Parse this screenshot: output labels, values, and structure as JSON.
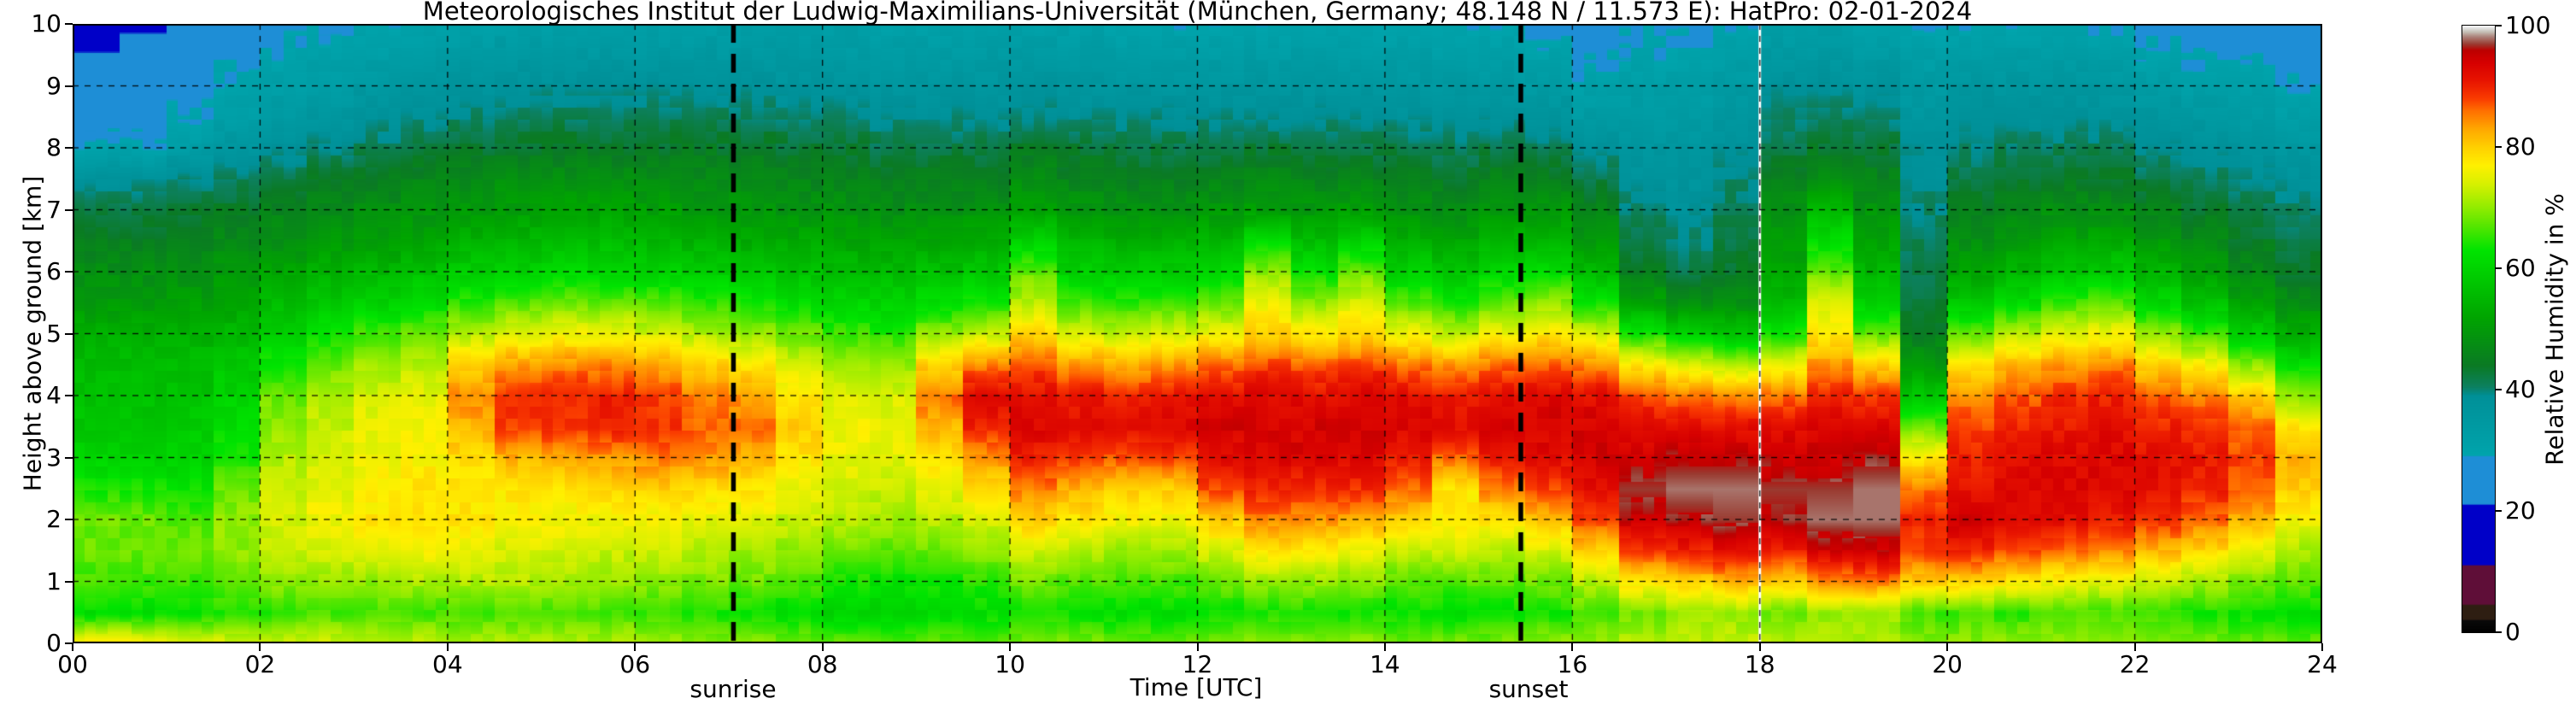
{
  "title": "Meteorologisches Institut der Ludwig-Maximilians-Universität (München, Germany; 48.148 N / 11.573 E):    HatPro: 02-01-2024",
  "axes": {
    "x": {
      "label": "Time [UTC]",
      "range_hours": [
        0,
        24
      ],
      "tick_hours": [
        0,
        2,
        4,
        6,
        8,
        10,
        12,
        14,
        16,
        18,
        20,
        22,
        24
      ],
      "tick_labels": [
        "00",
        "02",
        "04",
        "06",
        "08",
        "10",
        "12",
        "14",
        "16",
        "18",
        "20",
        "22",
        "24"
      ]
    },
    "y": {
      "label": "Height above ground [km]",
      "range_km": [
        0,
        10
      ],
      "tick_km": [
        0,
        1,
        2,
        3,
        4,
        5,
        6,
        7,
        8,
        9,
        10
      ],
      "tick_labels": [
        "0",
        "1",
        "2",
        "3",
        "4",
        "5",
        "6",
        "7",
        "8",
        "9",
        "10"
      ]
    }
  },
  "colorbar": {
    "label": "Relative Humidity in %",
    "range_percent": [
      0,
      100
    ],
    "tick_values": [
      0,
      20,
      40,
      60,
      80,
      100
    ],
    "tick_labels": [
      "0",
      "20",
      "40",
      "60",
      "80",
      "100"
    ]
  },
  "annotations": {
    "sunrise": {
      "label": "sunrise",
      "hour": 7.05,
      "line_style": "thick-black-dashed"
    },
    "sunset": {
      "label": "sunset",
      "hour": 15.45,
      "line_style": "thick-black-dashed"
    },
    "data_gap": {
      "hour": 18.0,
      "color": "#ffffff"
    }
  },
  "chart_data": {
    "type": "heatmap",
    "title": "Relative humidity time-height cross-section from HatPro microwave radiometer",
    "xlabel": "Time [UTC]",
    "ylabel": "Height above ground [km]",
    "x_range": [
      0,
      24
    ],
    "y_range": [
      0,
      10
    ],
    "value_units": "percent relative humidity",
    "grid": {
      "h_lines_km": [
        1,
        2,
        3,
        4,
        5,
        6,
        7,
        8,
        9
      ],
      "v_lines_hours": [
        2,
        4,
        6,
        8,
        10,
        12,
        14,
        16,
        18,
        20,
        22
      ],
      "style": "black-dashed"
    },
    "x_hours": [
      0,
      0.5,
      1,
      1.5,
      2,
      2.5,
      3,
      3.5,
      4,
      4.5,
      5,
      5.5,
      6,
      6.5,
      7,
      7.5,
      8,
      8.5,
      9,
      9.5,
      10,
      10.5,
      11,
      11.5,
      12,
      12.5,
      13,
      13.5,
      14,
      14.5,
      15,
      15.5,
      16,
      16.5,
      17,
      17.5,
      18,
      18.5,
      19,
      19.5,
      20,
      20.5,
      21,
      21.5,
      22,
      22.5,
      23,
      23.5
    ],
    "y_km": [
      0,
      0.5,
      1,
      1.5,
      2,
      2.5,
      3,
      3.5,
      4,
      4.5,
      5,
      5.5,
      6,
      6.5,
      7,
      7.5,
      8,
      8.5,
      9,
      9.5,
      10
    ],
    "values_percent": [
      [
        78,
        62,
        66,
        68,
        68,
        64,
        60,
        58,
        57,
        56,
        54,
        50,
        48,
        45,
        42,
        38,
        30,
        27,
        26,
        22,
        14
      ],
      [
        78,
        62,
        66,
        68,
        68,
        64,
        60,
        58,
        57,
        56,
        54,
        50,
        48,
        45,
        42,
        38,
        30,
        27,
        26,
        24,
        20
      ],
      [
        76,
        63,
        66,
        68,
        67,
        63,
        60,
        59,
        57,
        56,
        54,
        51,
        48,
        46,
        43,
        40,
        33,
        29,
        27,
        25,
        23
      ],
      [
        75,
        64,
        68,
        70,
        70,
        68,
        64,
        62,
        60,
        58,
        55,
        52,
        50,
        47,
        44,
        41,
        36,
        32,
        30,
        28,
        26
      ],
      [
        74,
        65,
        70,
        73,
        74,
        73,
        72,
        70,
        68,
        64,
        60,
        56,
        52,
        48,
        46,
        42,
        38,
        34,
        32,
        30,
        28
      ],
      [
        74,
        66,
        70,
        74,
        76,
        75,
        74,
        73,
        72,
        68,
        63,
        58,
        54,
        50,
        47,
        44,
        40,
        36,
        33,
        31,
        29
      ],
      [
        73,
        66,
        70,
        75,
        78,
        77,
        76,
        75,
        74,
        71,
        66,
        60,
        55,
        51,
        48,
        45,
        41,
        38,
        35,
        32,
        30
      ],
      [
        73,
        66,
        71,
        76,
        79,
        78,
        77,
        76,
        75,
        72,
        68,
        62,
        57,
        52,
        49,
        46,
        42,
        39,
        36,
        33,
        31
      ],
      [
        72,
        66,
        72,
        75,
        78,
        78,
        79,
        82,
        85,
        80,
        72,
        65,
        59,
        54,
        50,
        47,
        43,
        40,
        37,
        34,
        31
      ],
      [
        72,
        66,
        72,
        74,
        77,
        78,
        82,
        88,
        89,
        84,
        75,
        67,
        60,
        55,
        51,
        48,
        44,
        41,
        38,
        35,
        32
      ],
      [
        72,
        66,
        71,
        74,
        76,
        78,
        83,
        89,
        90,
        85,
        76,
        68,
        61,
        56,
        52,
        48,
        44,
        41,
        38,
        35,
        32
      ],
      [
        72,
        66,
        71,
        73,
        76,
        79,
        84,
        90,
        90,
        85,
        76,
        68,
        61,
        56,
        52,
        48,
        44,
        41,
        38,
        35,
        32
      ],
      [
        71,
        65,
        70,
        73,
        76,
        80,
        85,
        89,
        88,
        83,
        74,
        67,
        60,
        55,
        51,
        48,
        44,
        41,
        38,
        35,
        32
      ],
      [
        70,
        64,
        69,
        72,
        75,
        79,
        84,
        87,
        85,
        80,
        72,
        65,
        59,
        54,
        50,
        47,
        44,
        41,
        38,
        35,
        32
      ],
      [
        70,
        63,
        68,
        71,
        74,
        78,
        82,
        86,
        84,
        78,
        70,
        64,
        58,
        53,
        50,
        47,
        44,
        41,
        38,
        35,
        32
      ],
      [
        69,
        62,
        66,
        70,
        73,
        75,
        78,
        80,
        78,
        74,
        68,
        62,
        57,
        53,
        49,
        46,
        43,
        40,
        37,
        35,
        32
      ],
      [
        68,
        60,
        64,
        68,
        72,
        74,
        75,
        76,
        74,
        71,
        66,
        61,
        56,
        52,
        49,
        46,
        43,
        40,
        37,
        34,
        32
      ],
      [
        68,
        60,
        63,
        67,
        71,
        73,
        75,
        75,
        74,
        70,
        65,
        60,
        56,
        52,
        48,
        45,
        42,
        39,
        36,
        34,
        31
      ],
      [
        68,
        61,
        64,
        68,
        72,
        75,
        78,
        82,
        86,
        80,
        70,
        62,
        57,
        52,
        48,
        45,
        42,
        39,
        36,
        34,
        31
      ],
      [
        68,
        62,
        65,
        70,
        74,
        78,
        84,
        90,
        93,
        85,
        73,
        64,
        58,
        53,
        49,
        45,
        42,
        39,
        36,
        34,
        31
      ],
      [
        69,
        64,
        68,
        74,
        80,
        85,
        90,
        93,
        92,
        88,
        80,
        72,
        68,
        60,
        52,
        48,
        44,
        40,
        37,
        34,
        31
      ],
      [
        69,
        63,
        67,
        72,
        78,
        82,
        88,
        92,
        91,
        84,
        74,
        66,
        60,
        55,
        50,
        46,
        43,
        39,
        36,
        34,
        31
      ],
      [
        68,
        62,
        66,
        70,
        76,
        80,
        87,
        92,
        90,
        83,
        73,
        65,
        59,
        54,
        49,
        45,
        42,
        39,
        36,
        33,
        30
      ],
      [
        68,
        62,
        66,
        71,
        76,
        80,
        88,
        93,
        91,
        84,
        74,
        66,
        59,
        54,
        49,
        45,
        42,
        39,
        36,
        33,
        30
      ],
      [
        69,
        63,
        68,
        74,
        80,
        88,
        92,
        94,
        92,
        86,
        76,
        68,
        61,
        55,
        50,
        46,
        42,
        39,
        36,
        33,
        30
      ],
      [
        70,
        64,
        70,
        78,
        85,
        90,
        93,
        94,
        93,
        88,
        80,
        76,
        70,
        62,
        51,
        47,
        43,
        39,
        36,
        33,
        30
      ],
      [
        70,
        64,
        70,
        77,
        84,
        89,
        93,
        94,
        92,
        87,
        78,
        70,
        63,
        56,
        50,
        46,
        42,
        39,
        36,
        33,
        30
      ],
      [
        70,
        64,
        69,
        76,
        83,
        89,
        93,
        94,
        93,
        88,
        79,
        74,
        68,
        60,
        51,
        46,
        42,
        39,
        36,
        33,
        30
      ],
      [
        69,
        63,
        67,
        73,
        80,
        86,
        91,
        93,
        92,
        86,
        76,
        67,
        60,
        54,
        49,
        45,
        42,
        38,
        35,
        33,
        30
      ],
      [
        69,
        62,
        67,
        74,
        77,
        78,
        86,
        92,
        91,
        84,
        73,
        64,
        58,
        52,
        48,
        44,
        41,
        38,
        35,
        32,
        30
      ],
      [
        69,
        63,
        67,
        72,
        78,
        85,
        91,
        94,
        92,
        86,
        76,
        68,
        61,
        55,
        50,
        46,
        42,
        38,
        35,
        32,
        30
      ],
      [
        70,
        64,
        68,
        74,
        81,
        88,
        92,
        94,
        93,
        87,
        78,
        70,
        62,
        55,
        50,
        45,
        41,
        37,
        34,
        31,
        28
      ],
      [
        71,
        66,
        72,
        80,
        88,
        92,
        94,
        94,
        92,
        85,
        74,
        64,
        56,
        50,
        46,
        42,
        38,
        34,
        31,
        28,
        26
      ],
      [
        72,
        68,
        78,
        88,
        95,
        97,
        95,
        92,
        88,
        78,
        64,
        52,
        45,
        42,
        40,
        38,
        36,
        34,
        32,
        30,
        28
      ],
      [
        73,
        70,
        80,
        90,
        96,
        98,
        96,
        92,
        86,
        74,
        60,
        48,
        42,
        40,
        38,
        37,
        36,
        34,
        32,
        30,
        28
      ],
      [
        73,
        70,
        82,
        92,
        97,
        98,
        96,
        92,
        85,
        72,
        58,
        48,
        44,
        42,
        41,
        40,
        38,
        36,
        34,
        32,
        30
      ],
      [
        72,
        68,
        80,
        90,
        96,
        97,
        95,
        92,
        86,
        76,
        64,
        56,
        52,
        50,
        48,
        46,
        42,
        40,
        38,
        35,
        32
      ],
      [
        72,
        70,
        84,
        94,
        98,
        97,
        95,
        93,
        90,
        84,
        78,
        74,
        68,
        62,
        55,
        48,
        44,
        41,
        38,
        35,
        32
      ],
      [
        72,
        70,
        85,
        95,
        98,
        98,
        96,
        93,
        89,
        80,
        68,
        60,
        55,
        52,
        49,
        46,
        43,
        40,
        37,
        34,
        31
      ],
      [
        70,
        66,
        80,
        88,
        90,
        86,
        78,
        68,
        58,
        50,
        45,
        43,
        42,
        41,
        40,
        39,
        38,
        36,
        34,
        32,
        30
      ],
      [
        70,
        66,
        80,
        90,
        94,
        92,
        90,
        88,
        85,
        78,
        68,
        58,
        52,
        48,
        45,
        42,
        40,
        38,
        36,
        33,
        30
      ],
      [
        70,
        65,
        78,
        88,
        93,
        93,
        92,
        90,
        87,
        82,
        72,
        62,
        55,
        50,
        46,
        43,
        41,
        38,
        36,
        33,
        30
      ],
      [
        70,
        66,
        76,
        86,
        92,
        93,
        93,
        91,
        89,
        84,
        75,
        66,
        58,
        52,
        48,
        44,
        41,
        38,
        36,
        33,
        30
      ],
      [
        70,
        66,
        75,
        85,
        91,
        93,
        93,
        92,
        90,
        85,
        76,
        67,
        59,
        53,
        48,
        44,
        41,
        38,
        35,
        32,
        29
      ],
      [
        70,
        65,
        73,
        82,
        89,
        92,
        92,
        90,
        87,
        80,
        70,
        61,
        55,
        50,
        46,
        42,
        39,
        36,
        33,
        30,
        27
      ],
      [
        69,
        64,
        71,
        79,
        86,
        90,
        91,
        89,
        85,
        77,
        66,
        57,
        51,
        47,
        44,
        41,
        38,
        35,
        32,
        29,
        26
      ],
      [
        68,
        63,
        69,
        75,
        82,
        87,
        88,
        86,
        80,
        70,
        60,
        52,
        47,
        44,
        42,
        39,
        37,
        34,
        31,
        28,
        25
      ],
      [
        68,
        62,
        67,
        71,
        76,
        80,
        82,
        78,
        70,
        62,
        54,
        48,
        44,
        42,
        40,
        38,
        35,
        32,
        29,
        26,
        23
      ]
    ],
    "colormap_stops": [
      [
        0,
        "#000000"
      ],
      [
        2,
        "#0a0a0a"
      ],
      [
        2.2,
        "#2e1e12"
      ],
      [
        4.5,
        "#2e1e12"
      ],
      [
        4.7,
        "#5f0e38"
      ],
      [
        11,
        "#5f0e38"
      ],
      [
        11.2,
        "#0000c8"
      ],
      [
        21,
        "#0000c8"
      ],
      [
        21.2,
        "#1e8ed6"
      ],
      [
        29,
        "#1e8ed6"
      ],
      [
        29.2,
        "#00a4ac"
      ],
      [
        39,
        "#009098"
      ],
      [
        40.5,
        "#0c8060"
      ],
      [
        44,
        "#0a7a24"
      ],
      [
        52,
        "#00a500"
      ],
      [
        58,
        "#00c800"
      ],
      [
        63,
        "#00e400"
      ],
      [
        67,
        "#55e600"
      ],
      [
        70,
        "#90ec00"
      ],
      [
        74,
        "#d8f000"
      ],
      [
        77,
        "#fff000"
      ],
      [
        80,
        "#ffd000"
      ],
      [
        83,
        "#ffa800"
      ],
      [
        86,
        "#ff7000"
      ],
      [
        88,
        "#fa3c00"
      ],
      [
        91,
        "#e81400"
      ],
      [
        94,
        "#d60000"
      ],
      [
        96,
        "#bc0000"
      ],
      [
        97,
        "#9a3a30"
      ],
      [
        98.2,
        "#ab8078"
      ],
      [
        99,
        "#c4beb4"
      ],
      [
        99.6,
        "#dfdfdf"
      ],
      [
        100,
        "#fafafa"
      ]
    ]
  }
}
